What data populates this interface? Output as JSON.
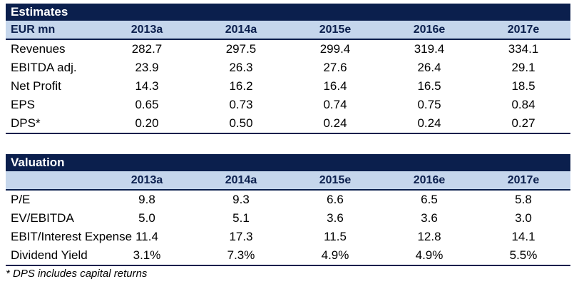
{
  "estimates": {
    "title": "Estimates",
    "unit_label": "EUR mn",
    "years": [
      "2013a",
      "2014a",
      "2015e",
      "2016e",
      "2017e"
    ],
    "rows": [
      {
        "label": "Revenues",
        "values": [
          "282.7",
          "297.5",
          "299.4",
          "319.4",
          "334.1"
        ]
      },
      {
        "label": "EBITDA adj.",
        "values": [
          "23.9",
          "26.3",
          "27.6",
          "26.4",
          "29.1"
        ]
      },
      {
        "label": "Net Profit",
        "values": [
          "14.3",
          "16.2",
          "16.4",
          "16.5",
          "18.5"
        ]
      },
      {
        "label": "EPS",
        "values": [
          "0.65",
          "0.73",
          "0.74",
          "0.75",
          "0.84"
        ]
      },
      {
        "label": "DPS*",
        "values": [
          "0.20",
          "0.50",
          "0.24",
          "0.24",
          "0.27"
        ]
      }
    ]
  },
  "valuation": {
    "title": "Valuation",
    "unit_label": "",
    "years": [
      "2013a",
      "2014a",
      "2015e",
      "2016e",
      "2017e"
    ],
    "rows": [
      {
        "label": "P/E",
        "values": [
          "9.8",
          "9.3",
          "6.6",
          "6.5",
          "5.8"
        ]
      },
      {
        "label": "EV/EBITDA",
        "values": [
          "5.0",
          "5.1",
          "3.6",
          "3.6",
          "3.0"
        ]
      },
      {
        "label": "EBIT/Interest Expense",
        "values": [
          "11.4",
          "17.3",
          "11.5",
          "12.8",
          "14.1"
        ]
      },
      {
        "label": "Dividend Yield",
        "values": [
          "3.1%",
          "7.3%",
          "4.9%",
          "4.9%",
          "5.5%"
        ]
      }
    ]
  },
  "footnote": "* DPS includes capital returns",
  "colors": {
    "title_bg": "#0b1f4d",
    "header_bg": "#c5d6ec",
    "header_text": "#0b1f4d"
  }
}
